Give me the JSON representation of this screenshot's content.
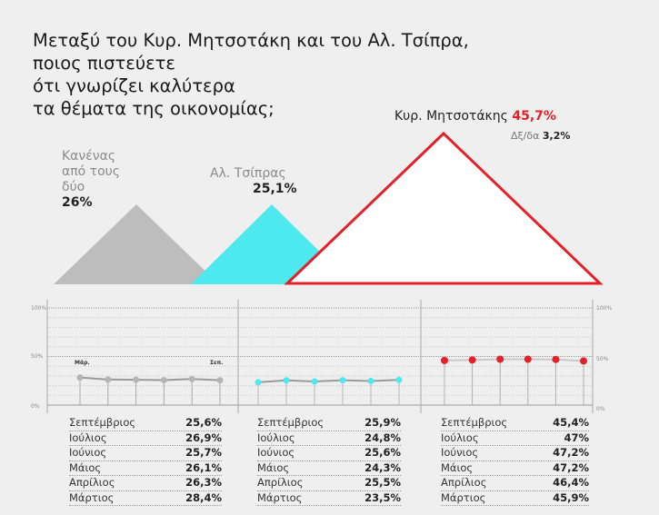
{
  "title_lines": [
    "Μεταξύ του Κυρ. Μητσοτάκη και του Αλ. Τσίπρα,",
    "ποιος πιστεύετε",
    "ότι γνωρίζει καλύτερα",
    "τα θέματα της οικονομίας;"
  ],
  "labels": {
    "none_lines": [
      "Κανένας",
      "από τους",
      "δύο"
    ],
    "none_value": "26%",
    "tsipras_name": "Αλ. Τσίπρας",
    "tsipras_value": "25,1%",
    "mitsotakis_name": "Κυρ. Μητσοτάκης",
    "mitsotakis_value": "45,7%",
    "dk_name": "Δξ/δα",
    "dk_value": "3,2%"
  },
  "colors": {
    "none": "#bdbdbd",
    "tsipras": "#4ee8ef",
    "mitsotakis": "#e2212b"
  },
  "axis": {
    "y100": "100%",
    "y50": "50%",
    "y0": "0%",
    "first_marker": "Μάρ.",
    "last_marker": "Σεπ."
  },
  "chart_data": [
    {
      "type": "bar",
      "title": "Μεταξύ του Κυρ. Μητσοτάκη και του Αλ. Τσίπρα, ποιος πιστεύετε ότι γνωρίζει καλύτερα τα θέματα της οικονομίας;",
      "categories": [
        "Κανένας από τους δύο",
        "Αλ. Τσίπρας",
        "Κυρ. Μητσοτάκης",
        "Δξ/δα"
      ],
      "values": [
        26,
        25.1,
        45.7,
        3.2
      ]
    },
    {
      "type": "line",
      "ylim": [
        0,
        100
      ],
      "x": [
        "Μάρτιος",
        "Απρίλιος",
        "Μάιος",
        "Ιούνιος",
        "Ιούλιος",
        "Σεπτέμβριος"
      ],
      "series": [
        {
          "name": "Κανένας από τους δύο",
          "values": [
            28.4,
            26.3,
            26.1,
            25.7,
            26.9,
            25.6
          ]
        },
        {
          "name": "Αλ. Τσίπρας",
          "values": [
            23.5,
            25.5,
            24.3,
            25.6,
            24.8,
            25.9
          ]
        },
        {
          "name": "Κυρ. Μητσοτάκης",
          "values": [
            45.9,
            46.4,
            47.2,
            47.2,
            47,
            45.4
          ]
        }
      ]
    }
  ],
  "tables": [
    {
      "rows": [
        {
          "month": "Σεπτέμβριος",
          "value": "25,6%"
        },
        {
          "month": "Ιούλιος",
          "value": "26,9%"
        },
        {
          "month": "Ιούνιος",
          "value": "25,7%"
        },
        {
          "month": "Μάιος",
          "value": "26,1%"
        },
        {
          "month": "Απρίλιος",
          "value": "26,3%"
        },
        {
          "month": "Μάρτιος",
          "value": "28,4%"
        }
      ]
    },
    {
      "rows": [
        {
          "month": "Σεπτέμβριος",
          "value": "25,9%"
        },
        {
          "month": "Ιούλιος",
          "value": "24,8%"
        },
        {
          "month": "Ιούνιος",
          "value": "25,6%"
        },
        {
          "month": "Μάιος",
          "value": "24,3%"
        },
        {
          "month": "Απρίλιος",
          "value": "25,5%"
        },
        {
          "month": "Μάρτιος",
          "value": "23,5%"
        }
      ]
    },
    {
      "rows": [
        {
          "month": "Σεπτέμβριος",
          "value": "45,4%"
        },
        {
          "month": "Ιούλιος",
          "value": "47%"
        },
        {
          "month": "Ιούνιος",
          "value": "47,2%"
        },
        {
          "month": "Μάιος",
          "value": "47,2%"
        },
        {
          "month": "Απρίλιος",
          "value": "46,4%"
        },
        {
          "month": "Μάρτιος",
          "value": "45,9%"
        }
      ]
    }
  ]
}
